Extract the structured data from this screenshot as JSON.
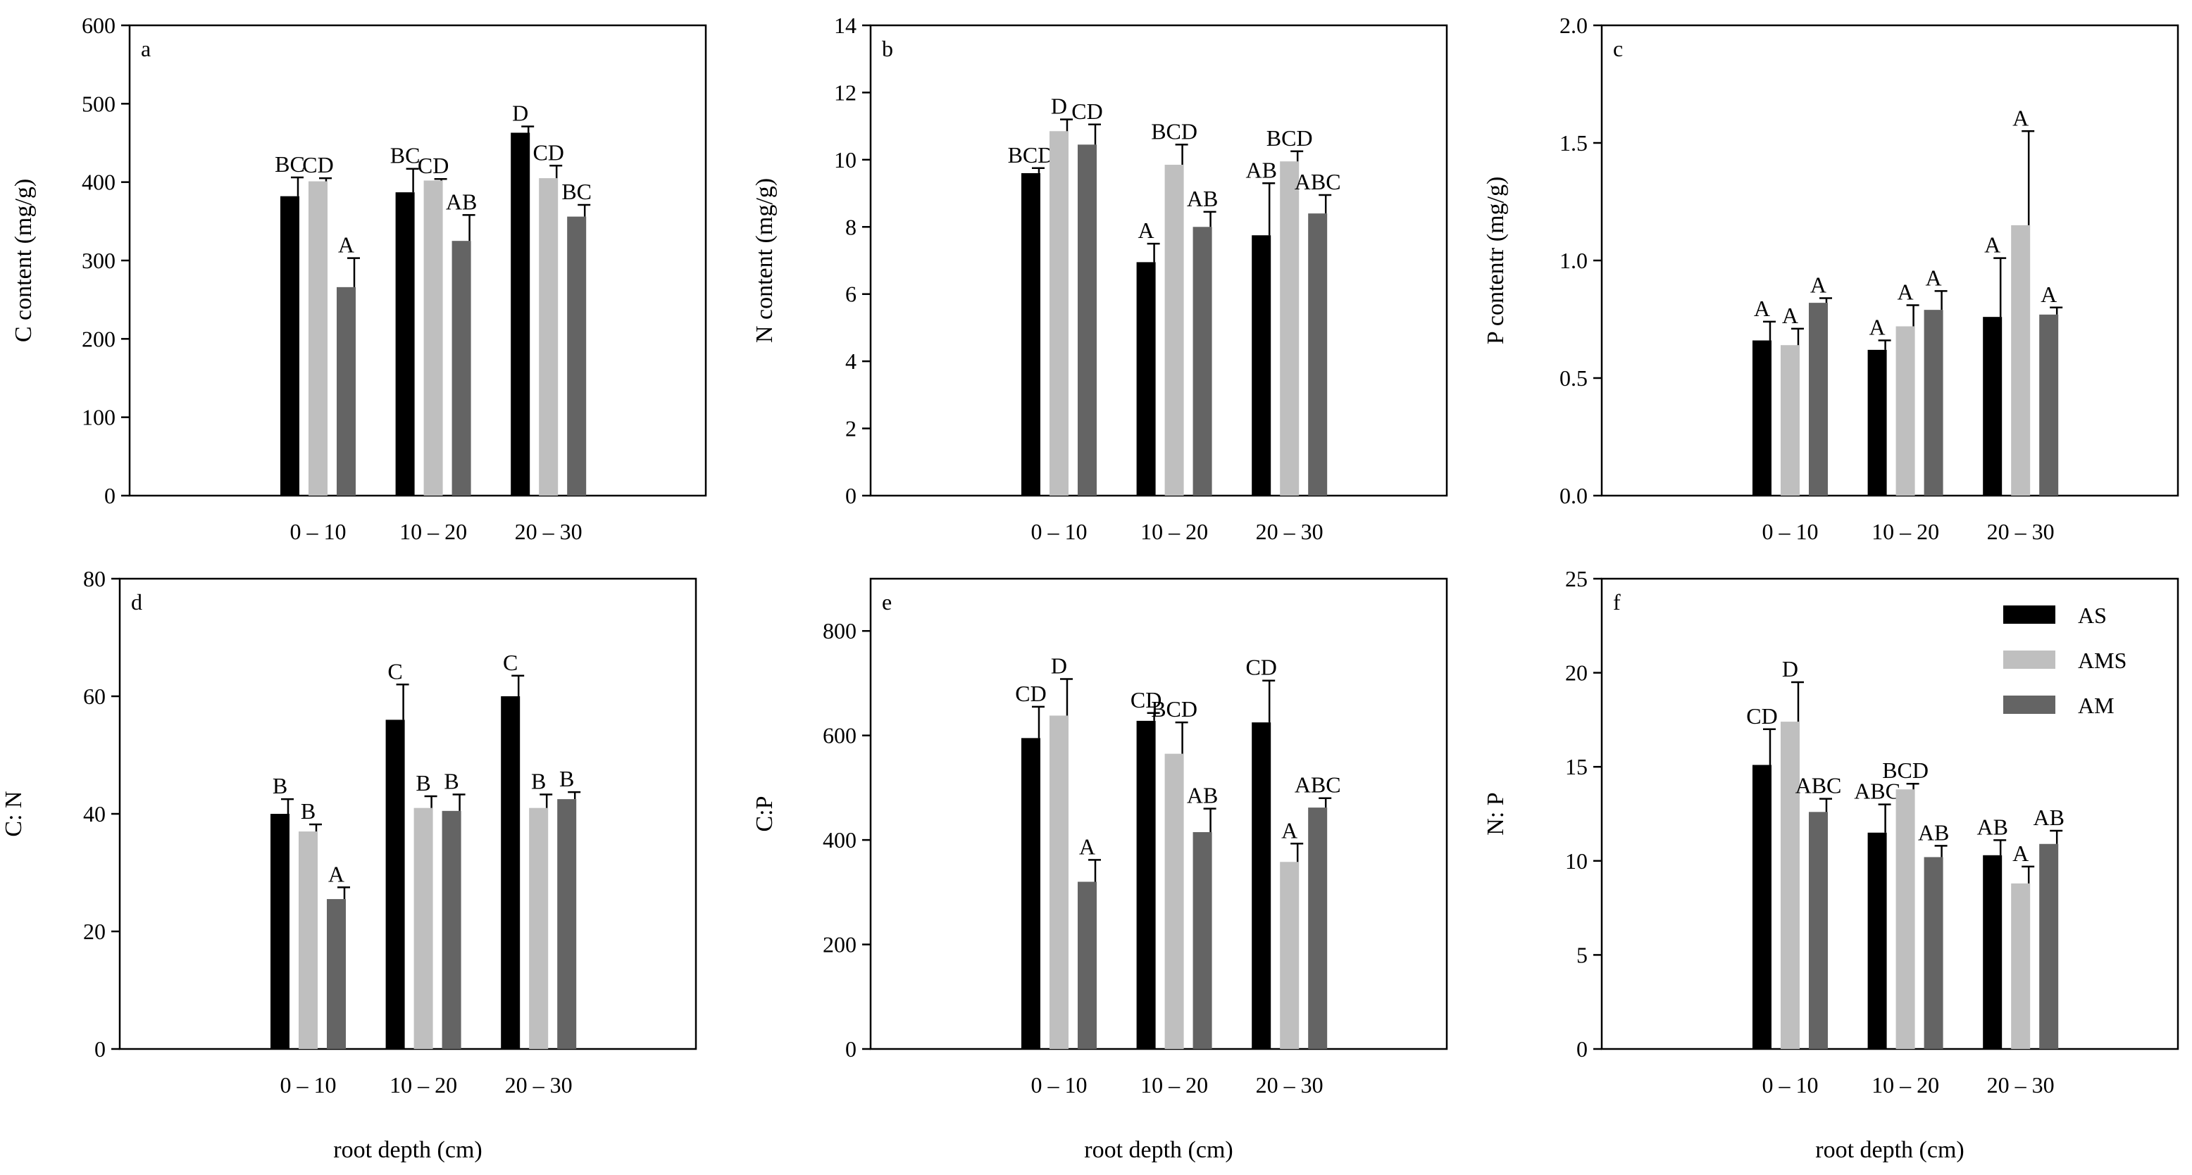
{
  "colors": {
    "AS": "#000000",
    "AMS": "#bfbfbf",
    "AM": "#646464"
  },
  "legend": {
    "items": [
      "AS",
      "AMS",
      "AM"
    ]
  },
  "chart_data": [
    {
      "type": "bar",
      "panel": "a",
      "categories": [
        "0 –  10",
        "10 –  20",
        "20 –  30"
      ],
      "ylabel": "C content (mg/g)",
      "xlabel": "",
      "ylim": [
        0,
        600
      ],
      "yticks": [
        "0",
        "100",
        "200",
        "300",
        "400",
        "500",
        "600"
      ],
      "series": [
        {
          "name": "AS",
          "values": [
            382,
            387,
            463
          ],
          "errors": [
            24,
            30,
            8
          ],
          "letters": [
            "BC",
            "BC",
            "D"
          ]
        },
        {
          "name": "AMS",
          "values": [
            401,
            402,
            405
          ],
          "errors": [
            4,
            2,
            16
          ],
          "letters": [
            "CD",
            "CD",
            "CD"
          ]
        },
        {
          "name": "AM",
          "values": [
            266,
            325,
            356
          ],
          "errors": [
            37,
            33,
            15
          ],
          "letters": [
            "A",
            "AB",
            "BC"
          ]
        }
      ]
    },
    {
      "type": "bar",
      "panel": "b",
      "categories": [
        "0 –  10",
        "10 –  20",
        "20 –  30"
      ],
      "ylabel": "N content (mg/g)",
      "xlabel": "",
      "ylim": [
        0,
        14
      ],
      "yticks": [
        "0",
        "2",
        "4",
        "6",
        "8",
        "10",
        "12",
        "14"
      ],
      "series": [
        {
          "name": "AS",
          "values": [
            9.6,
            6.95,
            7.75
          ],
          "errors": [
            0.15,
            0.55,
            1.55
          ],
          "letters": [
            "BCD",
            "A",
            "AB"
          ]
        },
        {
          "name": "AMS",
          "values": [
            10.85,
            9.85,
            9.95
          ],
          "errors": [
            0.35,
            0.6,
            0.3
          ],
          "letters": [
            "D",
            "BCD",
            "BCD"
          ]
        },
        {
          "name": "AM",
          "values": [
            10.45,
            8.0,
            8.4
          ],
          "errors": [
            0.6,
            0.45,
            0.55
          ],
          "letters": [
            "CD",
            "AB",
            "ABC"
          ]
        }
      ]
    },
    {
      "type": "bar",
      "panel": "c",
      "categories": [
        "0 –  10",
        "10 –  20",
        "20 –  30"
      ],
      "ylabel": "P contentr (mg/g)",
      "xlabel": "",
      "ylim": [
        0,
        2.0
      ],
      "yticks": [
        "0.0",
        "0.5",
        "1.0",
        "1.5",
        "2.0"
      ],
      "series": [
        {
          "name": "AS",
          "values": [
            0.66,
            0.62,
            0.76
          ],
          "errors": [
            0.08,
            0.04,
            0.25
          ],
          "letters": [
            "A",
            "A",
            "A"
          ]
        },
        {
          "name": "AMS",
          "values": [
            0.64,
            0.72,
            1.15
          ],
          "errors": [
            0.07,
            0.09,
            0.4
          ],
          "letters": [
            "A",
            "A",
            "A"
          ]
        },
        {
          "name": "AM",
          "values": [
            0.82,
            0.79,
            0.77
          ],
          "errors": [
            0.02,
            0.08,
            0.03
          ],
          "letters": [
            "A",
            "A",
            "A"
          ]
        }
      ]
    },
    {
      "type": "bar",
      "panel": "d",
      "categories": [
        "0 –  10",
        "10 –  20",
        "20 –  30"
      ],
      "ylabel": "C: N",
      "xlabel": "root depth (cm)",
      "ylim": [
        0,
        80
      ],
      "yticks": [
        "0",
        "20",
        "40",
        "60",
        "80"
      ],
      "series": [
        {
          "name": "AS",
          "values": [
            40,
            56,
            60
          ],
          "errors": [
            2.5,
            6,
            3.5
          ],
          "letters": [
            "B",
            "C",
            "C"
          ]
        },
        {
          "name": "AMS",
          "values": [
            37,
            41,
            41
          ],
          "errors": [
            1.2,
            2,
            2.3
          ],
          "letters": [
            "B",
            "B",
            "B"
          ]
        },
        {
          "name": "AM",
          "values": [
            25.5,
            40.5,
            42.5
          ],
          "errors": [
            2,
            2.8,
            1.2
          ],
          "letters": [
            "A",
            "B",
            "B"
          ]
        }
      ]
    },
    {
      "type": "bar",
      "panel": "e",
      "categories": [
        "0 –  10",
        "10 –  20",
        "20 –  30"
      ],
      "ylabel": "C:P",
      "xlabel": "root depth (cm)",
      "ylim": [
        0,
        900
      ],
      "yticks": [
        "0",
        "200",
        "400",
        "600",
        "800"
      ],
      "series": [
        {
          "name": "AS",
          "values": [
            595,
            628,
            625
          ],
          "errors": [
            60,
            15,
            80
          ],
          "letters": [
            "CD",
            "CD",
            "CD"
          ]
        },
        {
          "name": "AMS",
          "values": [
            638,
            565,
            358
          ],
          "errors": [
            70,
            60,
            35
          ],
          "letters": [
            "D",
            "BCD",
            "A"
          ]
        },
        {
          "name": "AM",
          "values": [
            320,
            415,
            462
          ],
          "errors": [
            42,
            45,
            18
          ],
          "letters": [
            "A",
            "AB",
            "ABC"
          ]
        }
      ]
    },
    {
      "type": "bar",
      "panel": "f",
      "categories": [
        "0 –  10",
        "10 –  20",
        "20 –  30"
      ],
      "ylabel": "N: P",
      "xlabel": "root depth (cm)",
      "ylim": [
        0,
        25
      ],
      "yticks": [
        "0",
        "5",
        "10",
        "15",
        "20",
        "25"
      ],
      "series": [
        {
          "name": "AS",
          "values": [
            15.1,
            11.5,
            10.3
          ],
          "errors": [
            1.9,
            1.5,
            0.8
          ],
          "letters": [
            "CD",
            "ABC",
            "AB"
          ]
        },
        {
          "name": "AMS",
          "values": [
            17.4,
            13.8,
            8.8
          ],
          "errors": [
            2.1,
            0.3,
            0.9
          ],
          "letters": [
            "D",
            "BCD",
            "A"
          ]
        },
        {
          "name": "AM",
          "values": [
            12.6,
            10.2,
            10.9
          ],
          "errors": [
            0.7,
            0.6,
            0.7
          ],
          "letters": [
            "ABC",
            "AB",
            "AB"
          ]
        }
      ]
    }
  ]
}
